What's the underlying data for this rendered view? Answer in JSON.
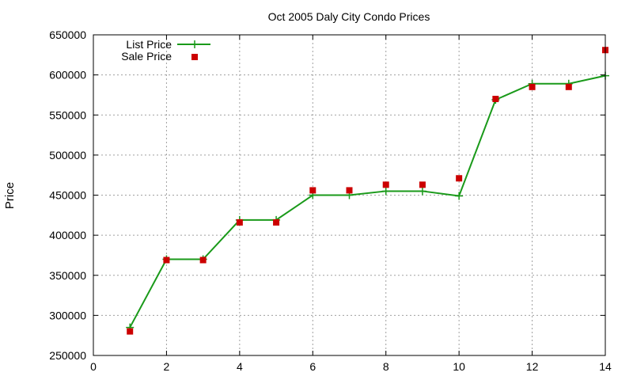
{
  "chart_data": {
    "type": "line",
    "title": "Oct 2005 Daly City Condo Prices",
    "xlabel": "",
    "ylabel": "Price",
    "xlim": [
      0,
      14
    ],
    "ylim": [
      250000,
      650000
    ],
    "x_ticks": [
      "0",
      "2",
      "4",
      "6",
      "8",
      "10",
      "12",
      "14"
    ],
    "y_ticks": [
      "250000",
      "300000",
      "350000",
      "400000",
      "450000",
      "500000",
      "550000",
      "600000",
      "650000"
    ],
    "grid": true,
    "legend_position": "top-left",
    "series": [
      {
        "name": "List Price",
        "kind": "line",
        "marker": "plus",
        "color": "#1a9a1a",
        "x": [
          1,
          2,
          3,
          4,
          5,
          6,
          7,
          8,
          9,
          10,
          11,
          12,
          13,
          14
        ],
        "y": [
          285000,
          370000,
          370000,
          419000,
          419000,
          450000,
          450000,
          455000,
          455000,
          449000,
          569000,
          589000,
          589000,
          599000
        ]
      },
      {
        "name": "Sale Price",
        "kind": "points",
        "marker": "square",
        "color": "#cc0000",
        "x": [
          1,
          2,
          3,
          4,
          5,
          6,
          7,
          8,
          9,
          10,
          11,
          12,
          13,
          14
        ],
        "y": [
          280000,
          369000,
          369000,
          416000,
          416000,
          456000,
          456000,
          463000,
          463000,
          471000,
          570000,
          585000,
          585000,
          631000
        ]
      }
    ]
  }
}
